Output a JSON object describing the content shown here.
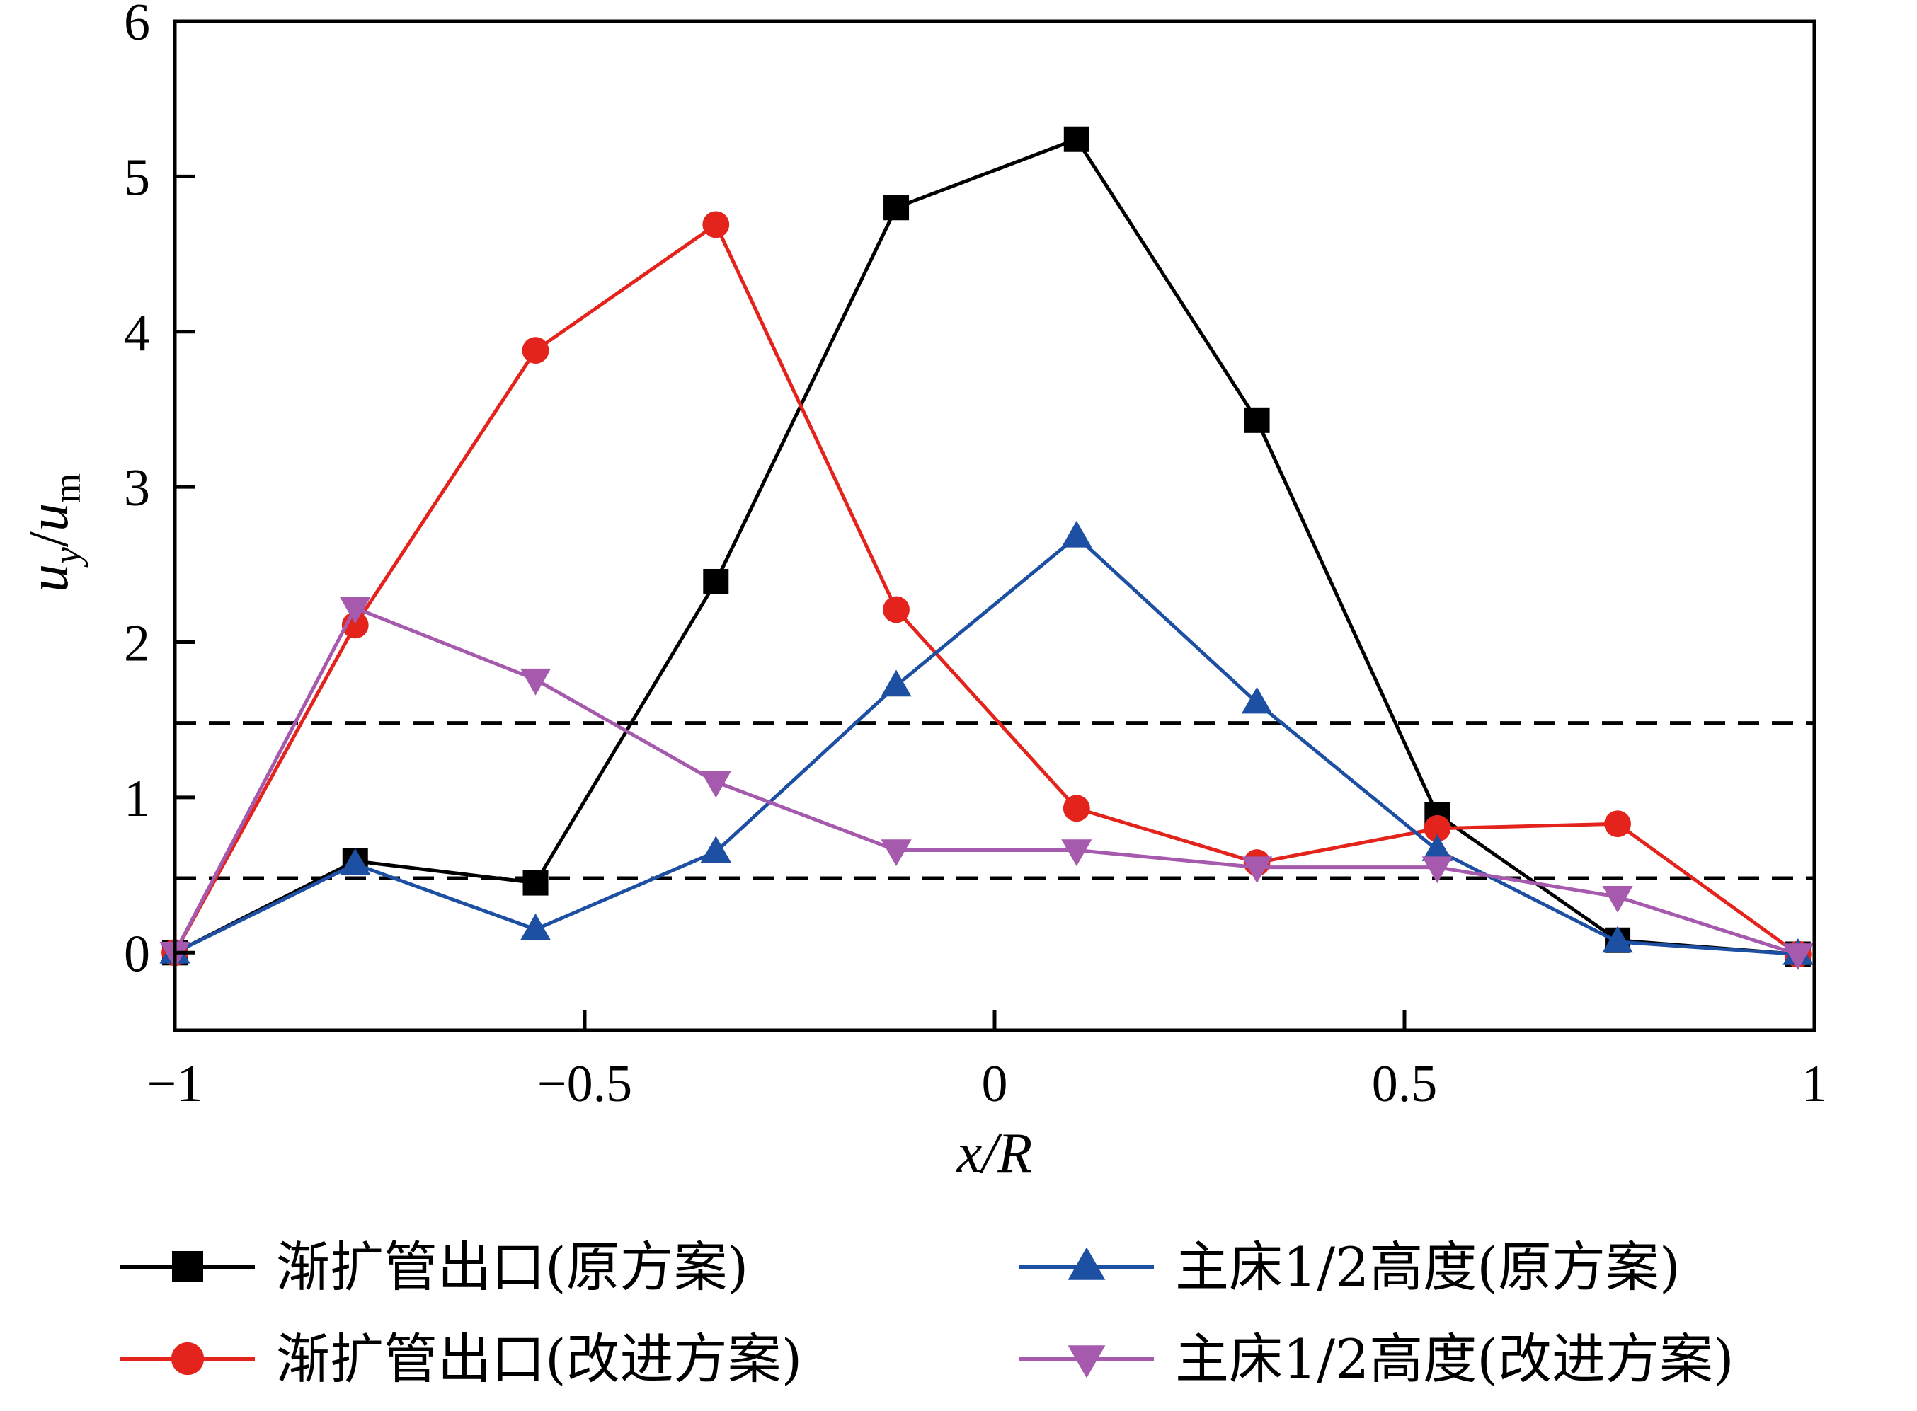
{
  "chart_data": {
    "type": "line",
    "title": "",
    "xlabel": "x/R",
    "ylabel": {
      "u": "u",
      "sub_y": "y",
      "slash": "/",
      "u2": "u",
      "sub_m": "m"
    },
    "xlim": [
      -1,
      1
    ],
    "ylim": [
      -0.5,
      6
    ],
    "x_ticks": [
      {
        "value": -1,
        "label": "−1"
      },
      {
        "value": -0.5,
        "label": "−0.5"
      },
      {
        "value": 0,
        "label": "0"
      },
      {
        "value": 0.5,
        "label": "0.5"
      },
      {
        "value": 1,
        "label": "1"
      }
    ],
    "y_ticks": [
      {
        "value": 0,
        "label": "0"
      },
      {
        "value": 1,
        "label": "1"
      },
      {
        "value": 2,
        "label": "2"
      },
      {
        "value": 3,
        "label": "3"
      },
      {
        "value": 4,
        "label": "4"
      },
      {
        "value": 5,
        "label": "5"
      },
      {
        "value": 6,
        "label": "6"
      }
    ],
    "reference_lines": [
      {
        "y": 1.48,
        "style": "dashed",
        "color": "#000000"
      },
      {
        "y": 0.48,
        "style": "dashed",
        "color": "#000000"
      }
    ],
    "series": [
      {
        "name": "渐扩管出口(原方案)",
        "color": "#000000",
        "marker": "square",
        "x": [
          -1.0,
          -0.78,
          -0.56,
          -0.34,
          -0.12,
          0.1,
          0.32,
          0.54,
          0.76,
          0.98
        ],
        "y": [
          0.0,
          0.59,
          0.45,
          2.39,
          4.8,
          5.24,
          3.43,
          0.89,
          0.08,
          -0.01
        ]
      },
      {
        "name": "渐扩管出口(改进方案)",
        "color": "#e3231c",
        "marker": "circle",
        "x": [
          -1.0,
          -0.78,
          -0.56,
          -0.34,
          -0.12,
          0.1,
          0.32,
          0.54,
          0.76,
          0.98
        ],
        "y": [
          0.0,
          2.11,
          3.88,
          4.69,
          2.21,
          0.93,
          0.58,
          0.8,
          0.83,
          -0.01
        ]
      },
      {
        "name": "主床1/2高度(原方案)",
        "color": "#1d4fa3",
        "marker": "triangle-up",
        "x": [
          -1.0,
          -0.78,
          -0.56,
          -0.34,
          -0.12,
          0.1,
          0.32,
          0.54,
          0.76,
          0.98
        ],
        "y": [
          0.0,
          0.57,
          0.15,
          0.65,
          1.72,
          2.68,
          1.61,
          0.66,
          0.07,
          -0.01
        ]
      },
      {
        "name": "主床1/2高度(改进方案)",
        "color": "#a65aad",
        "marker": "triangle-down",
        "x": [
          -1.0,
          -0.78,
          -0.56,
          -0.34,
          -0.12,
          0.1,
          0.32,
          0.54,
          0.76,
          0.98
        ],
        "y": [
          0.0,
          2.22,
          1.76,
          1.1,
          0.66,
          0.66,
          0.55,
          0.55,
          0.36,
          -0.01
        ]
      }
    ],
    "legend": {
      "position": "bottom",
      "columns": 2
    },
    "grid": false
  }
}
